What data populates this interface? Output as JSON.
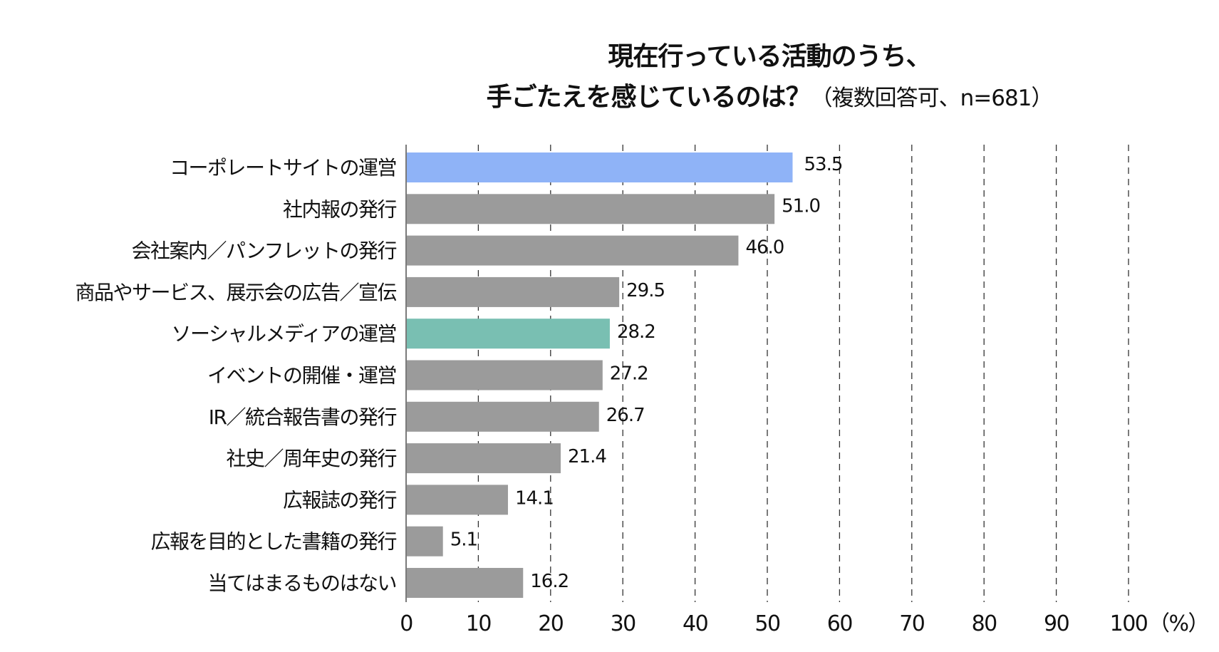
{
  "chart_data": {
    "type": "bar",
    "orientation": "horizontal",
    "title": "現在行っている活動のうち、",
    "title_line2": "手ごたえを感じているのは？",
    "subtitle": "（複数回答可、n=681）",
    "categories": [
      "コーポレートサイトの運営",
      "社内報の発行",
      "会社案内／パンフレットの発行",
      "商品やサービス、展示会の広告／宣伝",
      "ソーシャルメディアの運営",
      "イベントの開催・運営",
      "IR／統合報告書の発行",
      "社史／周年史の発行",
      "広報誌の発行",
      "広報を目的とした書籍の発行",
      "当てはまるものはない"
    ],
    "values": [
      53.5,
      51.0,
      46.0,
      29.5,
      28.2,
      27.2,
      26.7,
      21.4,
      14.1,
      5.1,
      16.2
    ],
    "value_labels": [
      "53.5",
      "51.0",
      "46.0",
      "29.5",
      "28.2",
      "27.2",
      "26.7",
      "21.4",
      "14.1",
      "5.1",
      "16.2"
    ],
    "colors": [
      "#8fb3f7",
      "#9b9b9b",
      "#9b9b9b",
      "#9b9b9b",
      "#79bfb2",
      "#9b9b9b",
      "#9b9b9b",
      "#9b9b9b",
      "#9b9b9b",
      "#9b9b9b",
      "#9b9b9b"
    ],
    "xlim": [
      0,
      100
    ],
    "xticks": [
      "0",
      "10",
      "20",
      "30",
      "40",
      "50",
      "60",
      "70",
      "80",
      "90",
      "100"
    ],
    "xunit": "（%）",
    "grid": "vertical-dashed",
    "xlabel": "",
    "ylabel": ""
  }
}
